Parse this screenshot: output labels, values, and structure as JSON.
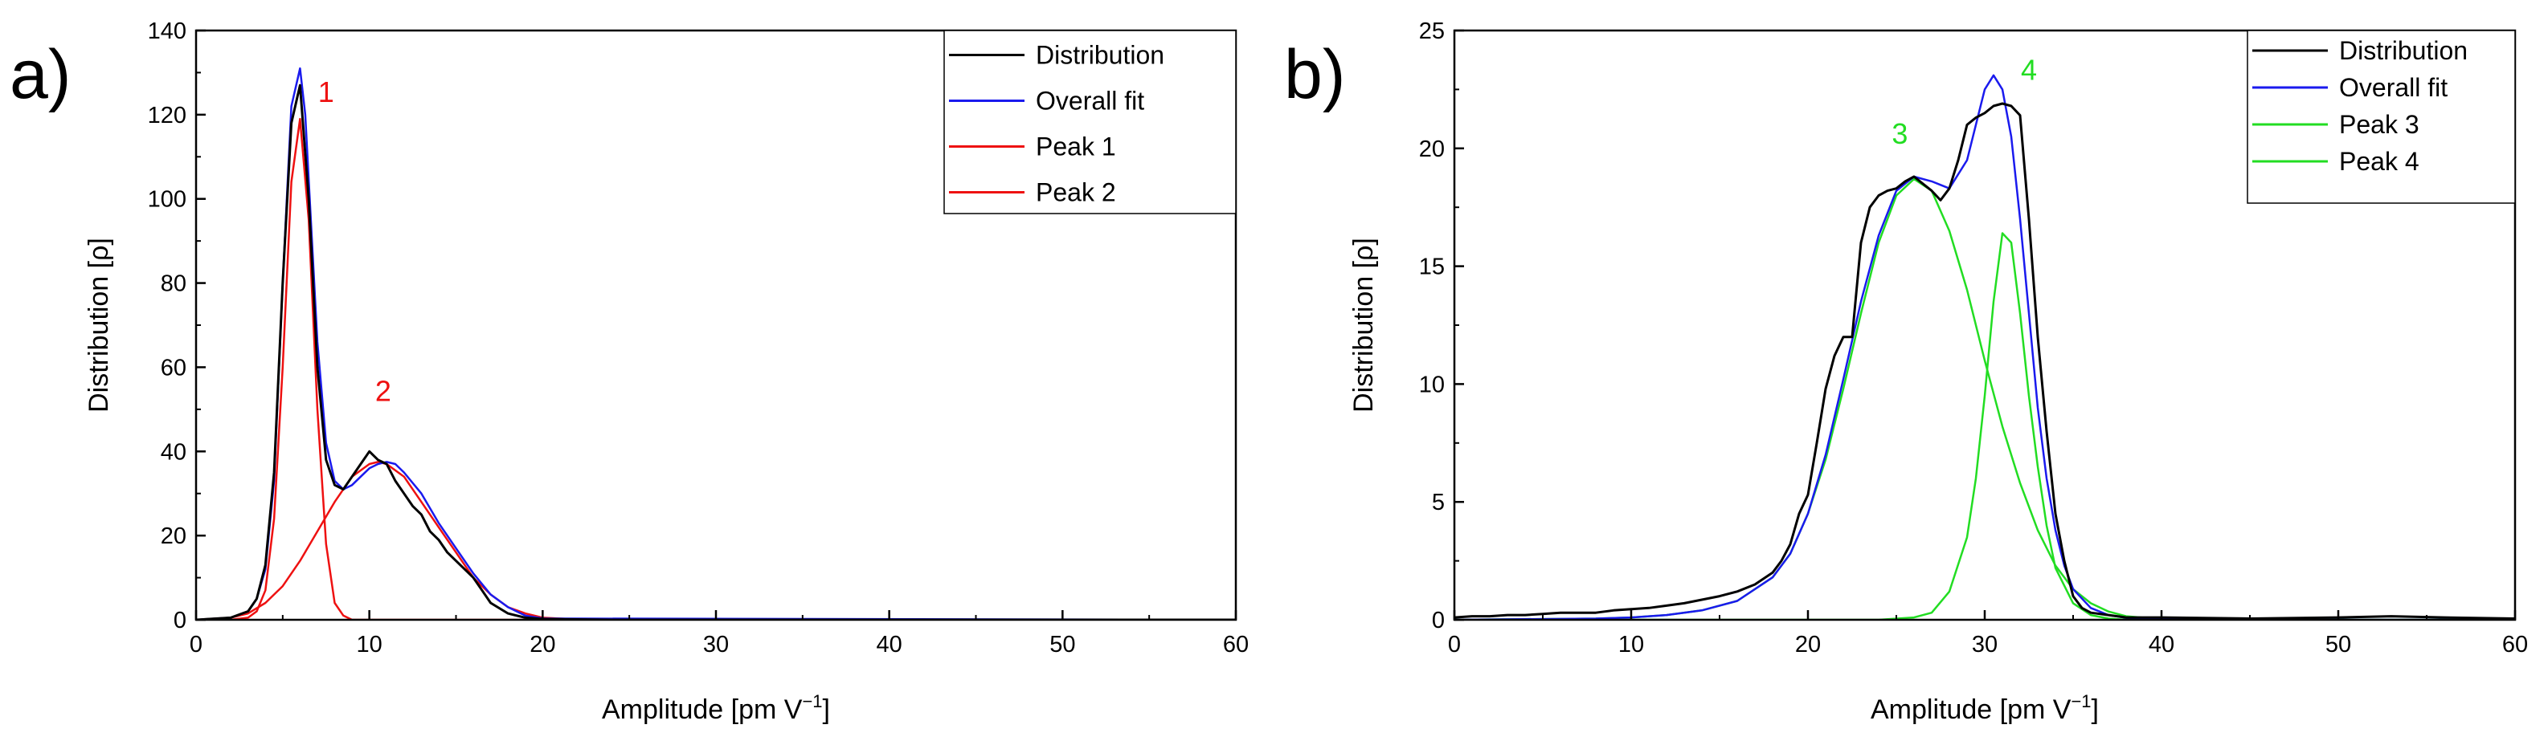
{
  "colors": {
    "distribution": "#000000",
    "overall_fit": "#1a1aee",
    "peak_red": "#ee1111",
    "peak_green": "#22dd22"
  },
  "chart_data": [
    {
      "type": "line",
      "panel_label": "a)",
      "xlabel": "Amplitude [pm V",
      "xlabel_sup": "−1",
      "xlabel_close": "]",
      "ylabel": "Distribution [ρ]",
      "xlim": [
        0,
        60
      ],
      "ylim": [
        0,
        140
      ],
      "xticks": [
        "0",
        "10",
        "20",
        "30",
        "40",
        "50",
        "60"
      ],
      "yticks": [
        "0",
        "20",
        "40",
        "60",
        "80",
        "100",
        "120",
        "140"
      ],
      "legend": {
        "position": "top-right",
        "entries": [
          {
            "label": "Distribution",
            "color": "#000000"
          },
          {
            "label": "Overall fit",
            "color": "#1a1aee"
          },
          {
            "label": "Peak 1",
            "color": "#ee1111"
          },
          {
            "label": "Peak 2",
            "color": "#ee1111"
          }
        ]
      },
      "annotations": [
        {
          "text": "1",
          "x": 7.5,
          "y": 123,
          "color": "#ee1111"
        },
        {
          "text": "2",
          "x": 10.8,
          "y": 52,
          "color": "#ee1111"
        }
      ],
      "series": [
        {
          "name": "Distribution",
          "color": "#000000",
          "width": 3,
          "x": [
            0,
            2,
            3,
            3.5,
            4,
            4.5,
            5,
            5.5,
            6,
            6.5,
            7,
            7.5,
            8,
            8.5,
            9,
            9.5,
            10,
            10.5,
            11,
            11.5,
            12,
            12.5,
            13,
            13.5,
            14,
            14.5,
            15,
            15.5,
            16,
            16.5,
            17,
            18,
            19,
            20,
            24,
            60
          ],
          "y": [
            0,
            0.5,
            2,
            5,
            13,
            35,
            80,
            118,
            127,
            100,
            60,
            38,
            32,
            31,
            34,
            37,
            40,
            38,
            37,
            33,
            30,
            27,
            25,
            21,
            19,
            16,
            14,
            12,
            10,
            7,
            4,
            1.5,
            0.5,
            0.2,
            0,
            0
          ]
        },
        {
          "name": "Overall fit",
          "color": "#1a1aee",
          "width": 2.5,
          "x": [
            0,
            2,
            3,
            3.5,
            4,
            4.5,
            5,
            5.5,
            6,
            6.3,
            6.6,
            7,
            7.5,
            8,
            8.5,
            9,
            9.5,
            10,
            10.5,
            11,
            11.5,
            12,
            13,
            14,
            15,
            16,
            17,
            18,
            19,
            20,
            60
          ],
          "y": [
            0,
            0.5,
            2,
            5,
            12,
            33,
            80,
            122,
            131,
            120,
            97,
            66,
            42,
            33,
            31,
            32,
            34,
            36,
            37,
            37.5,
            37,
            35,
            30,
            23,
            17,
            11,
            6,
            3,
            1,
            0.3,
            0
          ]
        },
        {
          "name": "Peak 1",
          "color": "#ee1111",
          "width": 2.5,
          "x": [
            0,
            2,
            3,
            3.5,
            4,
            4.5,
            5,
            5.5,
            6,
            6.5,
            7,
            7.5,
            8,
            8.5,
            9,
            60
          ],
          "y": [
            0,
            0,
            0.5,
            2,
            7,
            24,
            60,
            104,
            119,
            95,
            50,
            18,
            4,
            1,
            0,
            0
          ]
        },
        {
          "name": "Peak 2",
          "color": "#ee1111",
          "width": 2.5,
          "x": [
            0,
            2,
            3,
            4,
            5,
            6,
            7,
            8,
            9,
            10,
            10.5,
            11,
            12,
            13,
            14,
            15,
            16,
            17,
            18,
            19,
            20,
            22,
            24,
            60
          ],
          "y": [
            0,
            0.5,
            1.5,
            4,
            8,
            14,
            21,
            28,
            34,
            37,
            37.5,
            37,
            34,
            28,
            22,
            16,
            10,
            6,
            3,
            1.5,
            0.5,
            0.1,
            0,
            0
          ]
        }
      ]
    },
    {
      "type": "line",
      "panel_label": "b)",
      "xlabel": "Amplitude [pm V",
      "xlabel_sup": "−1",
      "xlabel_close": "]",
      "ylabel": "Distribution [ρ]",
      "xlim": [
        0,
        60
      ],
      "ylim": [
        0,
        25
      ],
      "xticks": [
        "0",
        "10",
        "20",
        "30",
        "40",
        "50",
        "60"
      ],
      "yticks": [
        "0",
        "5",
        "10",
        "15",
        "20",
        "25"
      ],
      "legend": {
        "position": "top-right",
        "entries": [
          {
            "label": "Distribution",
            "color": "#000000"
          },
          {
            "label": "Overall fit",
            "color": "#1a1aee"
          },
          {
            "label": "Peak 3",
            "color": "#22dd22"
          },
          {
            "label": "Peak 4",
            "color": "#22dd22"
          }
        ]
      },
      "annotations": [
        {
          "text": "3",
          "x": 25.2,
          "y": 20.2,
          "color": "#22dd22"
        },
        {
          "text": "4",
          "x": 32.5,
          "y": 22.9,
          "color": "#22dd22"
        }
      ],
      "series": [
        {
          "name": "Distribution",
          "color": "#000000",
          "width": 3,
          "x": [
            0,
            1,
            2,
            3,
            4,
            5,
            6,
            7,
            8,
            9,
            10,
            11,
            12,
            13,
            14,
            15,
            16,
            17,
            18,
            18.5,
            19,
            19.5,
            20,
            20.5,
            21,
            21.5,
            22,
            22.5,
            23,
            23.5,
            24,
            24.5,
            25,
            25.5,
            26,
            26.5,
            27,
            27.5,
            28,
            28.5,
            29,
            29.5,
            30,
            30.5,
            31,
            31.5,
            32,
            32.5,
            33,
            33.5,
            34,
            34.5,
            35,
            35.5,
            36,
            37,
            38,
            40,
            45,
            50,
            53,
            56,
            60
          ],
          "y": [
            0.1,
            0.15,
            0.15,
            0.2,
            0.2,
            0.25,
            0.3,
            0.3,
            0.3,
            0.4,
            0.45,
            0.5,
            0.6,
            0.7,
            0.85,
            1.0,
            1.2,
            1.5,
            2.0,
            2.5,
            3.2,
            4.5,
            5.3,
            7.5,
            9.8,
            11.2,
            12.0,
            12.0,
            16.0,
            17.5,
            18.0,
            18.2,
            18.3,
            18.6,
            18.8,
            18.5,
            18.2,
            17.8,
            18.3,
            19.5,
            21.0,
            21.3,
            21.5,
            21.8,
            21.9,
            21.8,
            21.4,
            17.0,
            12.0,
            8.0,
            4.5,
            2.5,
            1.0,
            0.5,
            0.3,
            0.2,
            0.1,
            0.1,
            0.05,
            0.1,
            0.15,
            0.1,
            0.05
          ]
        },
        {
          "name": "Overall fit",
          "color": "#1a1aee",
          "width": 2.5,
          "x": [
            0,
            8,
            10,
            12,
            14,
            16,
            18,
            19,
            20,
            21,
            22,
            23,
            24,
            25,
            26,
            27,
            28,
            29,
            29.5,
            30,
            30.5,
            31,
            31.5,
            32,
            32.5,
            33,
            33.5,
            34,
            34.5,
            35,
            36,
            37,
            38,
            40,
            45,
            60
          ],
          "y": [
            0,
            0.05,
            0.1,
            0.2,
            0.4,
            0.8,
            1.8,
            2.8,
            4.5,
            7.0,
            10.2,
            13.5,
            16.3,
            18.2,
            18.8,
            18.6,
            18.3,
            19.5,
            21.0,
            22.5,
            23.1,
            22.5,
            20.5,
            17.0,
            13.0,
            9.0,
            6.0,
            3.8,
            2.3,
            1.3,
            0.5,
            0.2,
            0.08,
            0.02,
            0,
            0
          ]
        },
        {
          "name": "Peak 3",
          "color": "#22dd22",
          "width": 2.5,
          "x": [
            0,
            8,
            10,
            12,
            14,
            16,
            18,
            19,
            20,
            21,
            22,
            23,
            24,
            25,
            26,
            27,
            28,
            29,
            30,
            31,
            32,
            33,
            34,
            35,
            36,
            37,
            38,
            40,
            42,
            45,
            60
          ],
          "y": [
            0,
            0.05,
            0.1,
            0.2,
            0.4,
            0.8,
            1.8,
            2.8,
            4.5,
            6.8,
            9.8,
            13.0,
            16.0,
            18.0,
            18.7,
            18.2,
            16.5,
            14.0,
            11.0,
            8.2,
            5.8,
            3.8,
            2.3,
            1.3,
            0.7,
            0.35,
            0.15,
            0.03,
            0.01,
            0,
            0
          ]
        },
        {
          "name": "Peak 4",
          "color": "#22dd22",
          "width": 2.5,
          "x": [
            0,
            20,
            24,
            26,
            27,
            28,
            29,
            29.5,
            30,
            30.5,
            31,
            31.5,
            32,
            32.5,
            33,
            33.5,
            34,
            35,
            36,
            37,
            38,
            60
          ],
          "y": [
            0,
            0,
            0,
            0.1,
            0.3,
            1.2,
            3.5,
            6.0,
            9.5,
            13.5,
            16.4,
            16.0,
            13.0,
            9.5,
            6.5,
            4.0,
            2.2,
            0.7,
            0.2,
            0.05,
            0,
            0
          ]
        }
      ]
    }
  ]
}
